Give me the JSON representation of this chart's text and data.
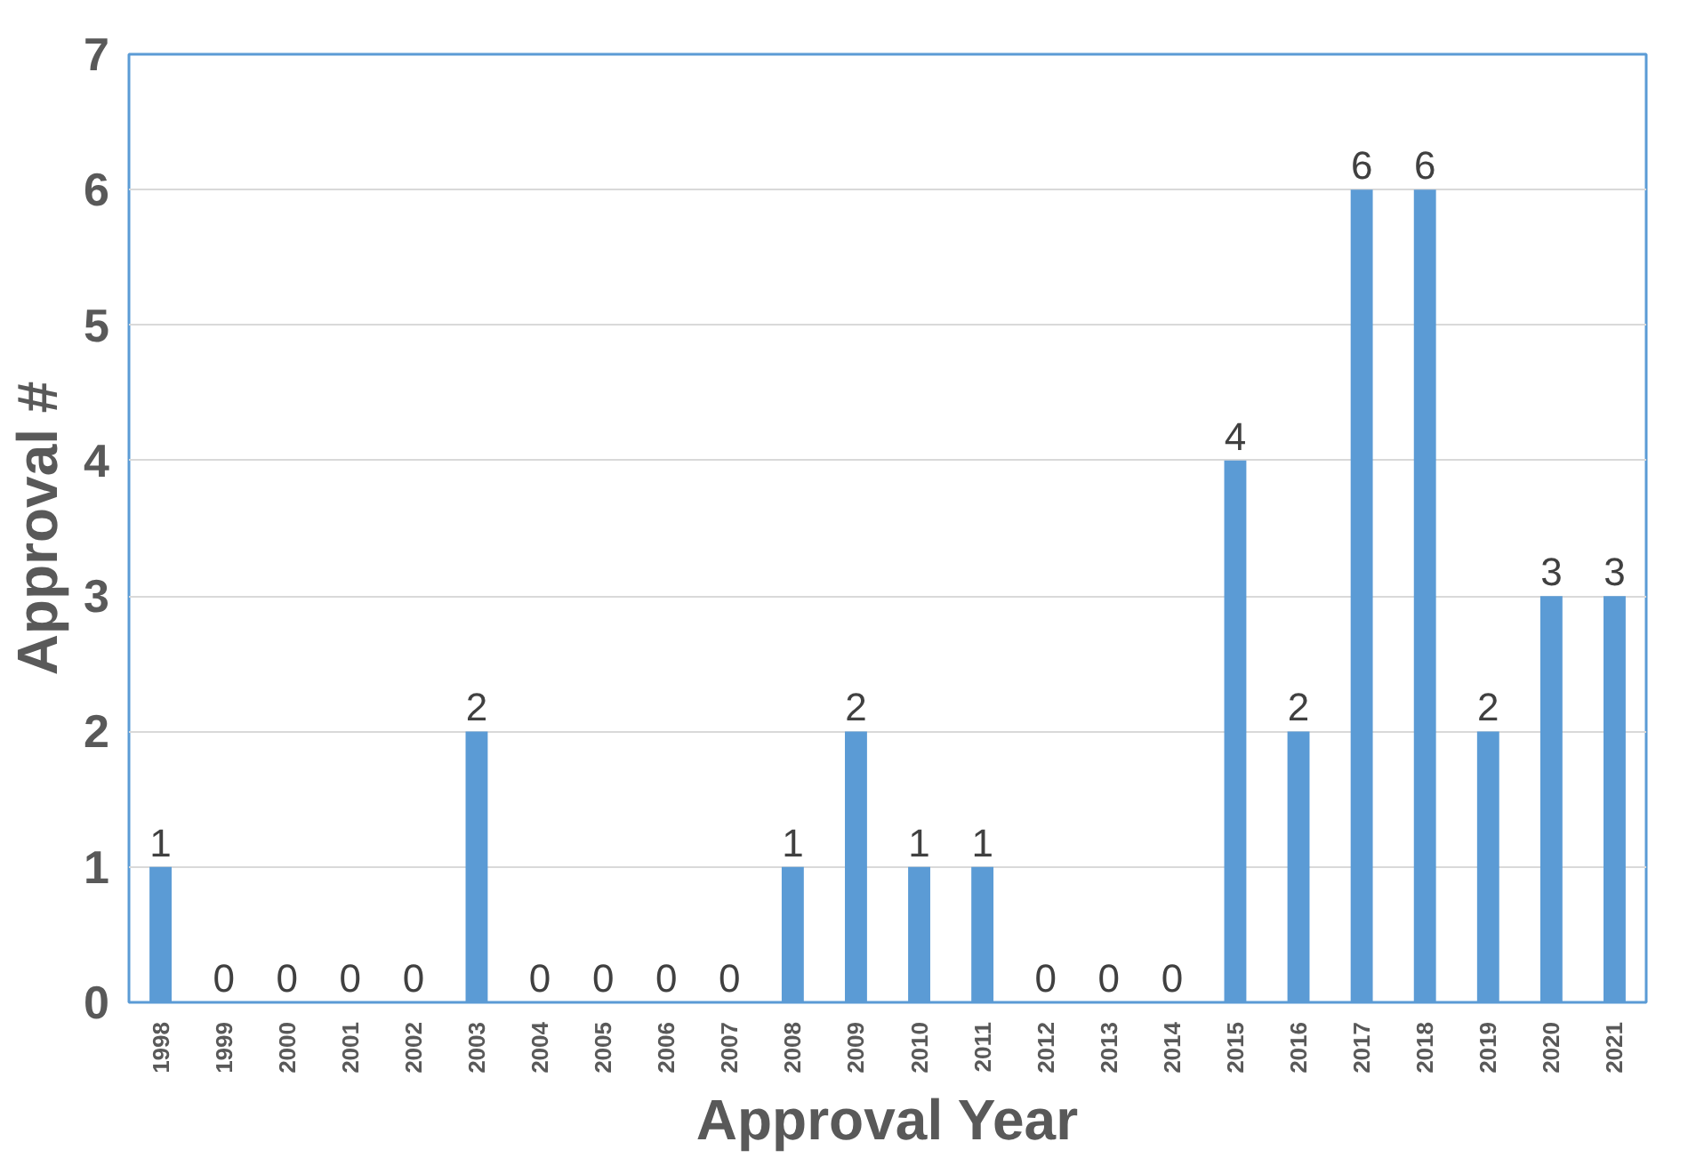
{
  "chart_data": {
    "type": "bar",
    "xlabel": "Approval Year",
    "ylabel": "Approval #",
    "categories": [
      "1998",
      "1999",
      "2000",
      "2001",
      "2002",
      "2003",
      "2004",
      "2005",
      "2006",
      "2007",
      "2008",
      "2009",
      "2010",
      "2011",
      "2012",
      "2013",
      "2014",
      "2015",
      "2016",
      "2017",
      "2018",
      "2019",
      "2020",
      "2021"
    ],
    "values": [
      1,
      0,
      0,
      0,
      0,
      2,
      0,
      0,
      0,
      0,
      1,
      2,
      1,
      1,
      0,
      0,
      0,
      4,
      2,
      6,
      6,
      2,
      3,
      3
    ],
    "color": "#5b9bd5",
    "ylim": [
      0,
      7
    ],
    "yticks": [
      0,
      1,
      2,
      3,
      4,
      5,
      6,
      7
    ],
    "grid": "y",
    "data_labels": true
  }
}
